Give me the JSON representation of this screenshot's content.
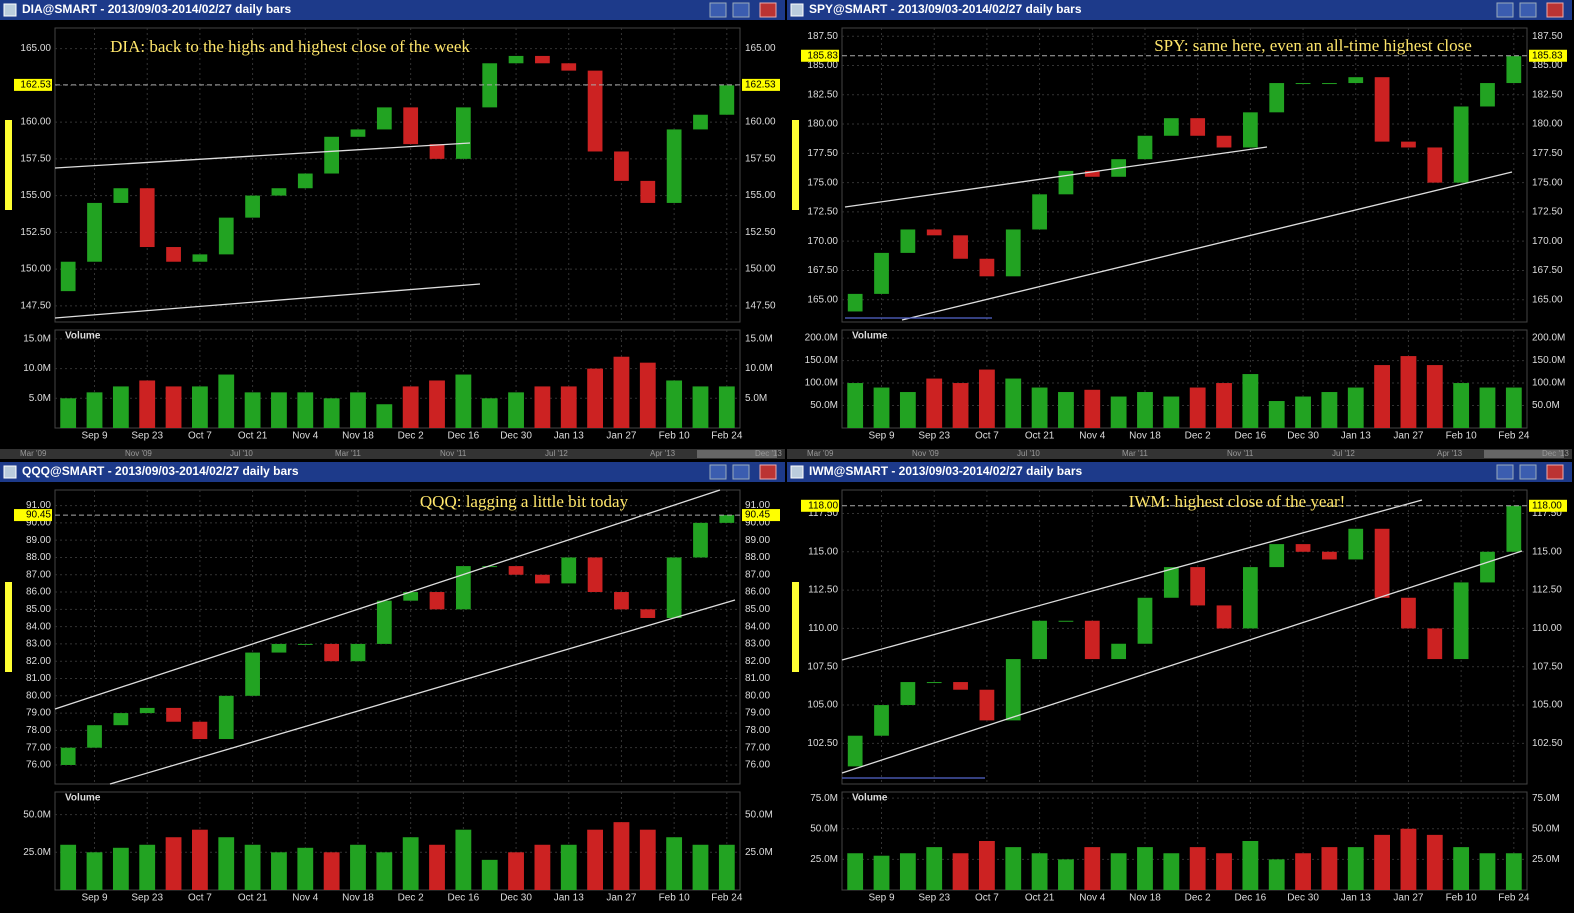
{
  "chart_data": [
    {
      "type": "candlestick",
      "title": "DIA@SMART - 2013/09/03-2014/02/27 daily bars",
      "annotation": "DIA: back to the highs and highest close of the week",
      "categories": [
        null,
        "Sep 9",
        null,
        "Sep 23",
        null,
        "Oct 7",
        null,
        "Oct 21",
        null,
        "Nov 4",
        null,
        "Nov 18",
        null,
        "Dec 2",
        null,
        "Dec 16",
        null,
        "Dec 30",
        null,
        "Jan 13",
        null,
        "Jan 27",
        null,
        "Feb 10",
        null,
        "Feb 24"
      ],
      "open": [
        148.5,
        150.5,
        154.5,
        155.5,
        151.5,
        150.5,
        151,
        153.5,
        155,
        155.5,
        156.5,
        159,
        159.5,
        161,
        158.5,
        157.5,
        161,
        164,
        164.5,
        164,
        163.5,
        158,
        156,
        154.5,
        159.5,
        160.5
      ],
      "close": [
        150.5,
        154.5,
        155.5,
        151.5,
        150.5,
        151,
        153.5,
        155,
        155.5,
        156.5,
        159,
        159.5,
        161,
        158.5,
        157.5,
        161,
        164,
        164.5,
        164,
        163.5,
        158,
        156,
        154.5,
        159.5,
        160.5,
        162.5
      ],
      "up_color": "#22a322",
      "down_color": "#cc2222",
      "ylim": [
        146.4,
        166.4
      ],
      "yticks": [
        {
          "value": 147.5,
          "label": "147.50"
        },
        {
          "value": 150,
          "label": "150.00"
        },
        {
          "value": 152.5,
          "label": "152.50"
        },
        {
          "value": 155,
          "label": "155.00"
        },
        {
          "value": 157.5,
          "label": "157.50"
        },
        {
          "value": 160,
          "label": "160.00"
        },
        {
          "value": 162.5,
          "label": "162.50"
        },
        {
          "value": 165,
          "label": "165.00"
        }
      ],
      "last": {
        "value": 162.53,
        "label": "162.53"
      },
      "volume": {
        "name": "Volume",
        "values": [
          5,
          6,
          7,
          8,
          7,
          7,
          9,
          6,
          6,
          6,
          5,
          6,
          4,
          7,
          8,
          9,
          5,
          6,
          7,
          7,
          10,
          12,
          11,
          8,
          7,
          7
        ],
        "ylim": [
          0,
          16.5
        ],
        "yticks": [
          {
            "value": 5,
            "label": "5.0M"
          },
          {
            "value": 10,
            "label": "10.0M"
          },
          {
            "value": 15,
            "label": "15.0M"
          }
        ]
      },
      "scroll_labels": [
        "Mar '09",
        "Nov '09",
        "Jul '10",
        "Mar '11",
        "Nov '11",
        "Jul '12",
        "Apr '13",
        "Dec '13"
      ]
    },
    {
      "type": "candlestick",
      "title": "SPY@SMART - 2013/09/03-2014/02/27 daily bars",
      "annotation": "SPY: same here, even an all-time highest close",
      "categories": [
        null,
        "Sep 9",
        null,
        "Sep 23",
        null,
        "Oct 7",
        null,
        "Oct 21",
        null,
        "Nov 4",
        null,
        "Nov 18",
        null,
        "Dec 2",
        null,
        "Dec 16",
        null,
        "Dec 30",
        null,
        "Jan 13",
        null,
        "Jan 27",
        null,
        "Feb 10",
        null,
        "Feb 24"
      ],
      "open": [
        164,
        165.5,
        169,
        171,
        170.5,
        168.5,
        167,
        171,
        174,
        176,
        175.5,
        177,
        179,
        180.5,
        179,
        178,
        181,
        183.5,
        183.5,
        183.5,
        184,
        178.5,
        178,
        175,
        181.5,
        183.5
      ],
      "close": [
        165.5,
        169,
        171,
        170.5,
        168.5,
        167,
        171,
        174,
        176,
        175.5,
        177,
        179,
        180.5,
        179,
        178,
        181,
        183.5,
        183.5,
        183.5,
        184,
        178.5,
        178,
        175,
        181.5,
        183.5,
        185.8
      ],
      "up_color": "#22a322",
      "down_color": "#cc2222",
      "ylim": [
        163.1,
        188.2
      ],
      "yticks": [
        {
          "value": 165,
          "label": "165.00"
        },
        {
          "value": 167.5,
          "label": "167.50"
        },
        {
          "value": 170,
          "label": "170.00"
        },
        {
          "value": 172.5,
          "label": "172.50"
        },
        {
          "value": 175,
          "label": "175.00"
        },
        {
          "value": 177.5,
          "label": "177.50"
        },
        {
          "value": 180,
          "label": "180.00"
        },
        {
          "value": 182.5,
          "label": "182.50"
        },
        {
          "value": 185,
          "label": "185.00"
        },
        {
          "value": 187.5,
          "label": "187.50"
        }
      ],
      "last": {
        "value": 185.83,
        "label": "185.83"
      },
      "volume": {
        "name": "Volume",
        "values": [
          100,
          90,
          80,
          110,
          100,
          130,
          110,
          90,
          80,
          85,
          70,
          80,
          70,
          90,
          100,
          120,
          60,
          70,
          80,
          90,
          140,
          160,
          140,
          100,
          90,
          90
        ],
        "ylim": [
          0,
          218
        ],
        "yticks": [
          {
            "value": 50,
            "label": "50.0M"
          },
          {
            "value": 100,
            "label": "100.0M"
          },
          {
            "value": 150,
            "label": "150.0M"
          },
          {
            "value": 200,
            "label": "200.0M"
          }
        ]
      },
      "scroll_labels": [
        "Mar '09",
        "Nov '09",
        "Jul '10",
        "Mar '11",
        "Nov '11",
        "Jul '12",
        "Apr '13",
        "Dec '13"
      ]
    },
    {
      "type": "candlestick",
      "title": "QQQ@SMART - 2013/09/03-2014/02/27 daily bars",
      "annotation": "QQQ: lagging a little bit today",
      "categories": [
        null,
        "Sep 9",
        null,
        "Sep 23",
        null,
        "Oct 7",
        null,
        "Oct 21",
        null,
        "Nov 4",
        null,
        "Nov 18",
        null,
        "Dec 2",
        null,
        "Dec 16",
        null,
        "Dec 30",
        null,
        "Jan 13",
        null,
        "Jan 27",
        null,
        "Feb 10",
        null,
        "Feb 24"
      ],
      "open": [
        76,
        77,
        78.3,
        79,
        79.3,
        78.5,
        77.5,
        80,
        82.5,
        83,
        83,
        82,
        83,
        85.5,
        86,
        85,
        87.5,
        87.5,
        87,
        86.5,
        88,
        86,
        85,
        84.5,
        88,
        90
      ],
      "close": [
        77,
        78.3,
        79,
        79.3,
        78.5,
        77.5,
        80,
        82.5,
        83,
        83,
        82,
        83,
        85.5,
        86,
        85,
        87.5,
        87.5,
        87,
        86.5,
        88,
        86,
        85,
        84.5,
        88,
        90,
        90.45
      ],
      "up_color": "#22a322",
      "down_color": "#cc2222",
      "ylim": [
        74.9,
        91.9
      ],
      "yticks": [
        {
          "value": 76,
          "label": "76.00"
        },
        {
          "value": 77,
          "label": "77.00"
        },
        {
          "value": 78,
          "label": "78.00"
        },
        {
          "value": 79,
          "label": "79.00"
        },
        {
          "value": 80,
          "label": "80.00"
        },
        {
          "value": 81,
          "label": "81.00"
        },
        {
          "value": 82,
          "label": "82.00"
        },
        {
          "value": 83,
          "label": "83.00"
        },
        {
          "value": 84,
          "label": "84.00"
        },
        {
          "value": 85,
          "label": "85.00"
        },
        {
          "value": 86,
          "label": "86.00"
        },
        {
          "value": 87,
          "label": "87.00"
        },
        {
          "value": 88,
          "label": "88.00"
        },
        {
          "value": 89,
          "label": "89.00"
        },
        {
          "value": 90,
          "label": "90.00"
        },
        {
          "value": 91,
          "label": "91.00"
        }
      ],
      "last": {
        "value": 90.45,
        "label": "90.45"
      },
      "volume": {
        "name": "Volume",
        "values": [
          30,
          25,
          28,
          30,
          35,
          40,
          35,
          30,
          25,
          28,
          25,
          30,
          25,
          35,
          30,
          40,
          20,
          25,
          30,
          30,
          40,
          45,
          40,
          35,
          30,
          30
        ],
        "ylim": [
          0,
          65
        ],
        "yticks": [
          {
            "value": 25,
            "label": "25.0M"
          },
          {
            "value": 50,
            "label": "50.0M"
          }
        ]
      }
    },
    {
      "type": "candlestick",
      "title": "IWM@SMART - 2013/09/03-2014/02/27 daily bars",
      "annotation": "IWM: highest close of the year!",
      "categories": [
        null,
        "Sep 9",
        null,
        "Sep 23",
        null,
        "Oct 7",
        null,
        "Oct 21",
        null,
        "Nov 4",
        null,
        "Nov 18",
        null,
        "Dec 2",
        null,
        "Dec 16",
        null,
        "Dec 30",
        null,
        "Jan 13",
        null,
        "Jan 27",
        null,
        "Feb 10",
        null,
        "Feb 24"
      ],
      "open": [
        101,
        103,
        105,
        106.5,
        106.5,
        106,
        104,
        108,
        110.5,
        110.5,
        108,
        109,
        112,
        114,
        111.5,
        110,
        114,
        115.5,
        115,
        114.5,
        116.5,
        112,
        110,
        108,
        113,
        115
      ],
      "close": [
        103,
        105,
        106.5,
        106.5,
        106,
        104,
        108,
        110.5,
        110.5,
        108,
        109,
        112,
        114,
        111.5,
        110,
        114,
        115.5,
        115,
        114.5,
        116.5,
        112,
        110,
        108,
        113,
        115,
        118
      ],
      "up_color": "#22a322",
      "down_color": "#cc2222",
      "ylim": [
        99.85,
        119.03
      ],
      "yticks": [
        {
          "value": 102.5,
          "label": "102.50"
        },
        {
          "value": 105,
          "label": "105.00"
        },
        {
          "value": 107.5,
          "label": "107.50"
        },
        {
          "value": 110,
          "label": "110.00"
        },
        {
          "value": 112.5,
          "label": "112.50"
        },
        {
          "value": 115,
          "label": "115.00"
        },
        {
          "value": 117.5,
          "label": "117.50"
        }
      ],
      "last": {
        "value": 118,
        "label": "118.00"
      },
      "volume": {
        "name": "Volume",
        "values": [
          30,
          28,
          30,
          35,
          30,
          40,
          35,
          30,
          25,
          35,
          30,
          35,
          30,
          35,
          30,
          40,
          25,
          30,
          35,
          35,
          45,
          50,
          45,
          35,
          30,
          30
        ],
        "ylim": [
          0,
          80
        ],
        "yticks": [
          {
            "value": 25,
            "label": "25.0M"
          },
          {
            "value": 50,
            "label": "50.0M"
          },
          {
            "value": 75,
            "label": "75.0M"
          }
        ]
      }
    }
  ]
}
